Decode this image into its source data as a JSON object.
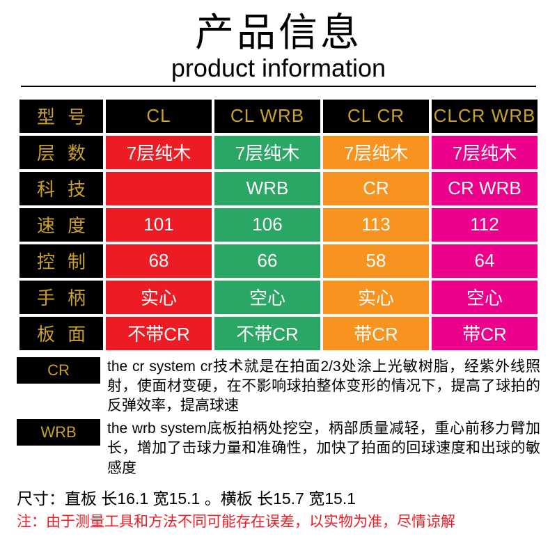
{
  "header": {
    "title_cn": "产品信息",
    "title_en": "product information"
  },
  "colors": {
    "black": "#000000",
    "gold": "#c9a227",
    "red": "#ed1c24",
    "green": "#2aa765",
    "orange": "#f7931e",
    "magenta": "#ec008c",
    "white": "#ffffff"
  },
  "table": {
    "header_row": {
      "label": "型号",
      "cols": [
        "CL",
        "CL WRB",
        "CL CR",
        "CLCR WRB"
      ]
    },
    "rows": [
      {
        "label": "层数",
        "cells": [
          {
            "v": "7层纯木",
            "c": "red"
          },
          {
            "v": "7层纯木",
            "c": "green"
          },
          {
            "v": "7层纯木",
            "c": "orange"
          },
          {
            "v": "7层纯木",
            "c": "magenta"
          }
        ]
      },
      {
        "label": "科技",
        "cells": [
          {
            "v": "",
            "c": "red"
          },
          {
            "v": "WRB",
            "c": "green"
          },
          {
            "v": "CR",
            "c": "orange"
          },
          {
            "v": "CR WRB",
            "c": "magenta"
          }
        ]
      },
      {
        "label": "速度",
        "cells": [
          {
            "v": "101",
            "c": "red"
          },
          {
            "v": "106",
            "c": "green"
          },
          {
            "v": "113",
            "c": "orange"
          },
          {
            "v": "112",
            "c": "magenta"
          }
        ]
      },
      {
        "label": "控制",
        "cells": [
          {
            "v": "68",
            "c": "red"
          },
          {
            "v": "66",
            "c": "green"
          },
          {
            "v": "58",
            "c": "orange"
          },
          {
            "v": "64",
            "c": "magenta"
          }
        ]
      },
      {
        "label": "手柄",
        "cells": [
          {
            "v": "实心",
            "c": "red"
          },
          {
            "v": "空心",
            "c": "green"
          },
          {
            "v": "实心",
            "c": "orange"
          },
          {
            "v": "空心",
            "c": "magenta"
          }
        ]
      },
      {
        "label": "板面",
        "cells": [
          {
            "v": "不带CR",
            "c": "red"
          },
          {
            "v": "不带CR",
            "c": "green"
          },
          {
            "v": "带CR",
            "c": "orange"
          },
          {
            "v": "带CR",
            "c": "magenta"
          }
        ]
      }
    ]
  },
  "notes": [
    {
      "badge": "CR",
      "text": "the cr system cr技术就是在拍面2/3处涂上光敏树脂，经紫外线照射，使面材变硬，在不影响球拍整体变形的情况下，提高了球拍的反弹效率，提高球速"
    },
    {
      "badge": "WRB",
      "text": "the wrb system底板拍柄处挖空，柄部质量减轻，重心前移力臂加长，增加了击球力量和准确性，加快了拍面的回球速度和出球的敏感度"
    }
  ],
  "size_line": "尺寸：直板 长16.1 宽15.1 。横板 长15.7 宽15.1",
  "warn_line": "注：由于测量工具和方法不同可能存在误差，以实物为准，尽情谅解"
}
